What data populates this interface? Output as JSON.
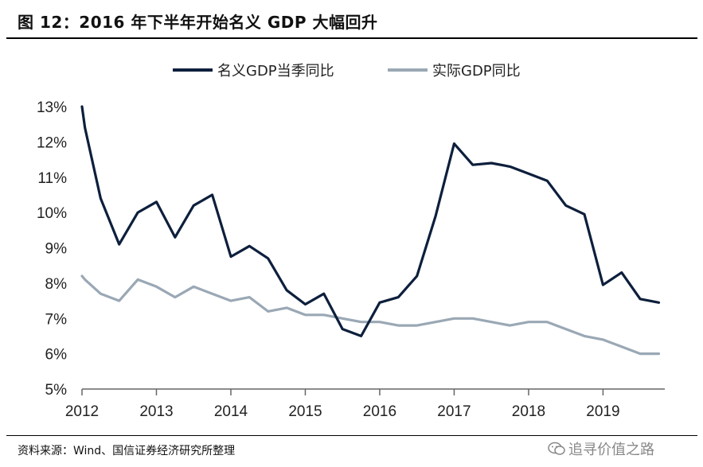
{
  "title": "图 12：2016 年下半年开始名义 GDP 大幅回升",
  "source": "资料来源：Wind、国信证券经济研究所整理",
  "watermark": "追寻价值之路",
  "chart_data": {
    "type": "line",
    "x_tick_labels": [
      "2012",
      "2013",
      "2014",
      "2015",
      "2016",
      "2017",
      "2018",
      "2019"
    ],
    "y_tick_labels": [
      "5%",
      "6%",
      "7%",
      "8%",
      "9%",
      "10%",
      "11%",
      "12%",
      "13%"
    ],
    "ylim": [
      5,
      13
    ],
    "xlim": [
      2012.0,
      2019.83
    ],
    "grid": false,
    "legend_position": "top-center",
    "series": [
      {
        "name": "名义GDP当季同比",
        "color": "#0d1f3c",
        "points": [
          [
            2012.0,
            13.0
          ],
          [
            2012.04,
            12.4
          ],
          [
            2012.25,
            10.4
          ],
          [
            2012.5,
            9.1
          ],
          [
            2012.75,
            10.0
          ],
          [
            2013.0,
            10.3
          ],
          [
            2013.25,
            9.3
          ],
          [
            2013.5,
            10.2
          ],
          [
            2013.75,
            10.5
          ],
          [
            2014.0,
            8.75
          ],
          [
            2014.25,
            9.05
          ],
          [
            2014.5,
            8.7
          ],
          [
            2014.75,
            7.8
          ],
          [
            2015.0,
            7.4
          ],
          [
            2015.25,
            7.7
          ],
          [
            2015.5,
            6.7
          ],
          [
            2015.75,
            6.5
          ],
          [
            2016.0,
            7.45
          ],
          [
            2016.25,
            7.6
          ],
          [
            2016.5,
            8.2
          ],
          [
            2016.75,
            9.9
          ],
          [
            2017.0,
            11.95
          ],
          [
            2017.25,
            11.35
          ],
          [
            2017.5,
            11.4
          ],
          [
            2017.75,
            11.3
          ],
          [
            2018.0,
            11.1
          ],
          [
            2018.25,
            10.9
          ],
          [
            2018.5,
            10.2
          ],
          [
            2018.75,
            9.95
          ],
          [
            2019.0,
            7.95
          ],
          [
            2019.25,
            8.3
          ],
          [
            2019.5,
            7.55
          ],
          [
            2019.75,
            7.45
          ]
        ]
      },
      {
        "name": "实际GDP同比",
        "color": "#9aa8b5",
        "points": [
          [
            2012.0,
            8.2
          ],
          [
            2012.04,
            8.1
          ],
          [
            2012.25,
            7.7
          ],
          [
            2012.5,
            7.5
          ],
          [
            2012.75,
            8.1
          ],
          [
            2013.0,
            7.9
          ],
          [
            2013.25,
            7.6
          ],
          [
            2013.5,
            7.9
          ],
          [
            2013.75,
            7.7
          ],
          [
            2014.0,
            7.5
          ],
          [
            2014.25,
            7.6
          ],
          [
            2014.5,
            7.2
          ],
          [
            2014.75,
            7.3
          ],
          [
            2015.0,
            7.1
          ],
          [
            2015.25,
            7.1
          ],
          [
            2015.5,
            7.0
          ],
          [
            2015.75,
            6.9
          ],
          [
            2016.0,
            6.9
          ],
          [
            2016.25,
            6.8
          ],
          [
            2016.5,
            6.8
          ],
          [
            2016.75,
            6.9
          ],
          [
            2017.0,
            7.0
          ],
          [
            2017.25,
            7.0
          ],
          [
            2017.5,
            6.9
          ],
          [
            2017.75,
            6.8
          ],
          [
            2018.0,
            6.9
          ],
          [
            2018.25,
            6.9
          ],
          [
            2018.5,
            6.7
          ],
          [
            2018.75,
            6.5
          ],
          [
            2019.0,
            6.4
          ],
          [
            2019.25,
            6.2
          ],
          [
            2019.5,
            6.0
          ],
          [
            2019.75,
            6.0
          ]
        ]
      }
    ]
  }
}
